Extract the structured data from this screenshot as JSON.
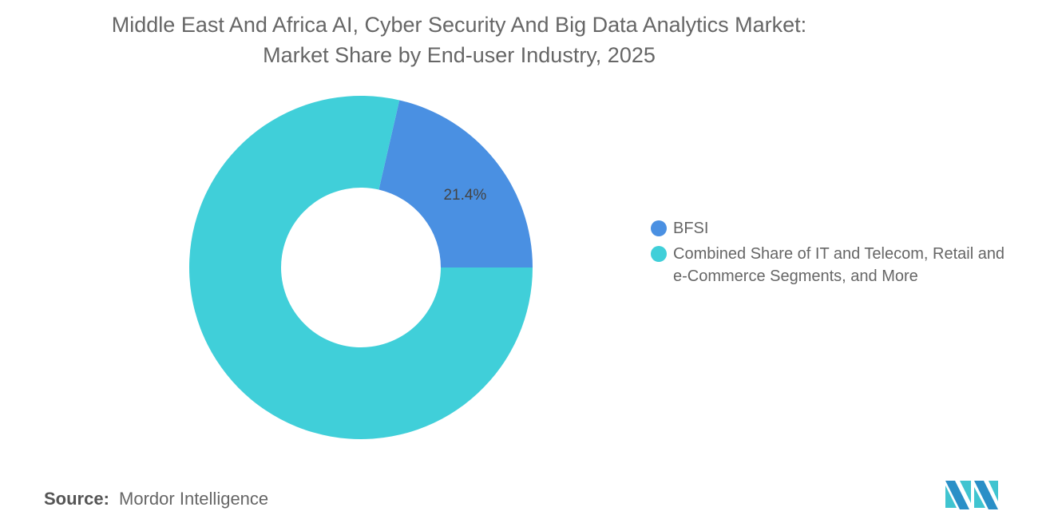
{
  "title_line1": "Middle East And Africa AI, Cyber Security And Big Data Analytics Market:",
  "title_line2": "Market Share by End-user Industry, 2025",
  "chart_data": {
    "type": "pie",
    "donut": true,
    "title": "Middle East And Africa AI, Cyber Security And Big Data Analytics Market: Market Share by End-user Industry, 2025",
    "legend_position": "right",
    "slices": [
      {
        "label": "BFSI",
        "value": 21.4,
        "color": "#4a90e2",
        "data_label": "21.4%"
      },
      {
        "label": "Combined Share of IT and Telecom, Retail and e-Commerce Segments, and More",
        "value": 78.6,
        "color": "#40cfd9",
        "data_label": ""
      }
    ]
  },
  "source_label": "Source:",
  "source_value": "Mordor Intelligence",
  "logo_icon": "mordor-intelligence-logo"
}
